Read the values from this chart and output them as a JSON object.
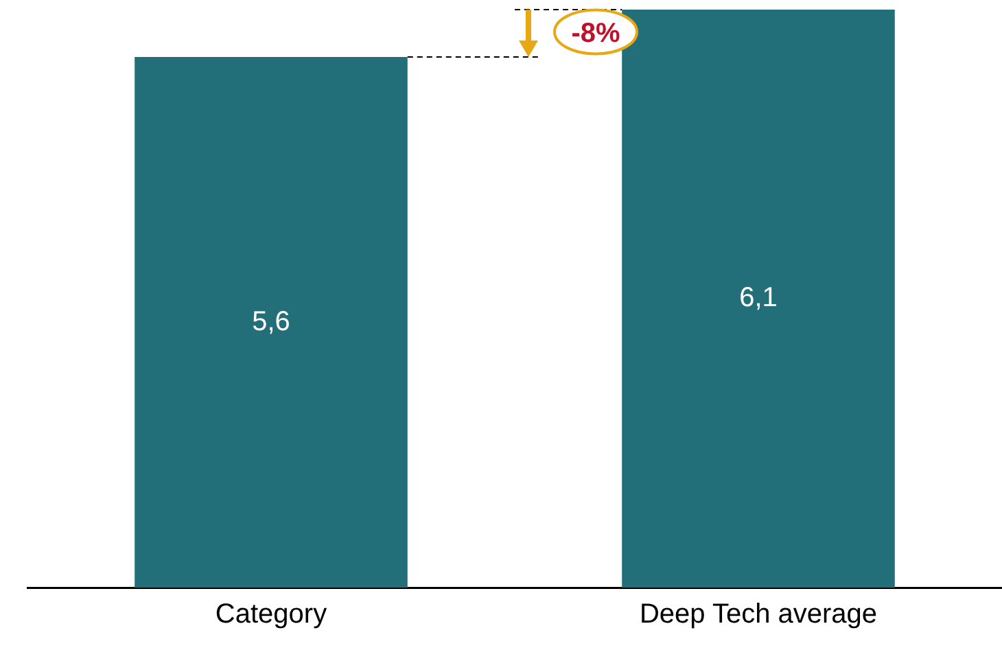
{
  "chart_data": {
    "type": "bar",
    "categories": [
      "Category",
      "Deep Tech average"
    ],
    "values": [
      5.6,
      6.1
    ],
    "color": "#236f79",
    "value_labels": [
      "5,6",
      "6,1"
    ],
    "ylim": [
      0,
      6.1
    ],
    "tick_labels": "x",
    "grid": false,
    "legend": false,
    "annotations": [
      "-8%"
    ]
  }
}
